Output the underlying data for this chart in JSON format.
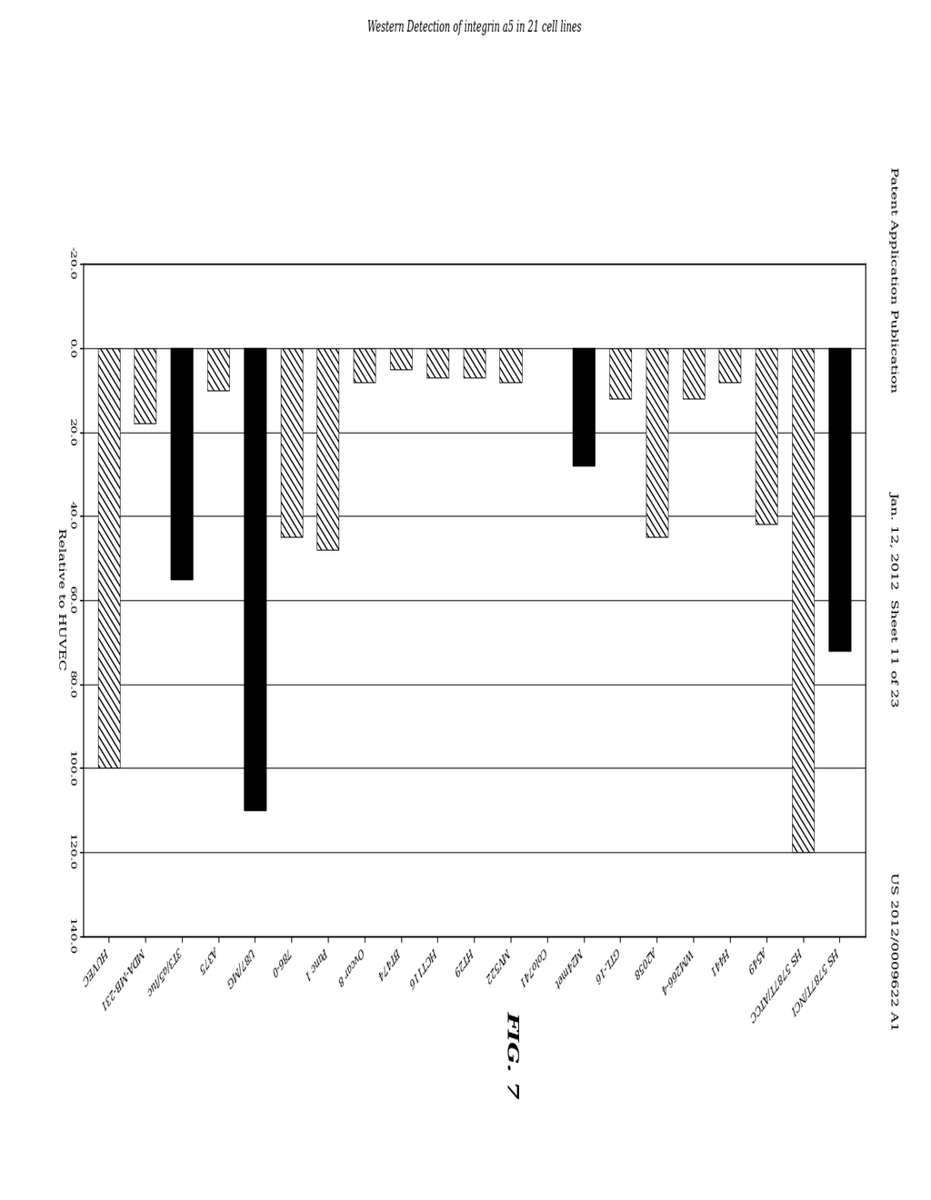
{
  "header_left": "Patent Application Publication",
  "header_center": "Jan. 12, 2012  Sheet 11 of 23",
  "header_right": "US 2012/0009622 A1",
  "title": "Western Detection of integrin a5 in 21 cell lines",
  "xlabel": "Relative to HUVEC",
  "xlim": [
    -20,
    140
  ],
  "xticks": [
    -20.0,
    0.0,
    20.0,
    40.0,
    60.0,
    80.0,
    100.0,
    120.0,
    140.0
  ],
  "xtick_labels": [
    "-20.0",
    "0.0",
    "20.0",
    "40.0",
    "60.0",
    "80.0",
    "100.0",
    "120.0",
    "140.0"
  ],
  "fig_label": "FIG. 7",
  "categories": [
    "HUVEC",
    "MDA-MB-231",
    "3T3/a5/luc",
    "A375",
    "U87/MG",
    "786-0",
    "Panc 1",
    "Ovcar 8",
    "BT474",
    "HCT116",
    "HT29",
    "MV522",
    "Colo741",
    "M24met",
    "GTL-16",
    "A2058",
    "WM266-4",
    "H441",
    "A549",
    "HS 5787T/ATCC",
    "HS 5787T/NCI"
  ],
  "values": [
    100.0,
    18.0,
    55.0,
    10.0,
    110.0,
    45.0,
    48.0,
    8.0,
    5.0,
    7.0,
    7.0,
    8.0,
    0.0,
    28.0,
    12.0,
    45.0,
    12.0,
    8.0,
    42.0,
    120.0,
    72.0
  ],
  "bar_styles": [
    "hatch",
    "hatch",
    "solid",
    "hatch",
    "solid",
    "hatch",
    "hatch",
    "hatch",
    "hatch",
    "hatch",
    "hatch",
    "hatch",
    "none",
    "solid",
    "hatch",
    "hatch",
    "hatch",
    "hatch",
    "hatch",
    "hatch",
    "solid"
  ],
  "hatch_pattern": "////",
  "solid_color": "#000000",
  "hatch_color": "#000000",
  "hatch_face_color": "#ffffff",
  "bar_height": 0.6,
  "figure_bg": "#ffffff",
  "axes_bg": "#ffffff",
  "title_fontsize": 9,
  "tick_fontsize": 8,
  "label_fontsize": 8,
  "header_fontsize": 9,
  "fig_label_fontsize": 16
}
